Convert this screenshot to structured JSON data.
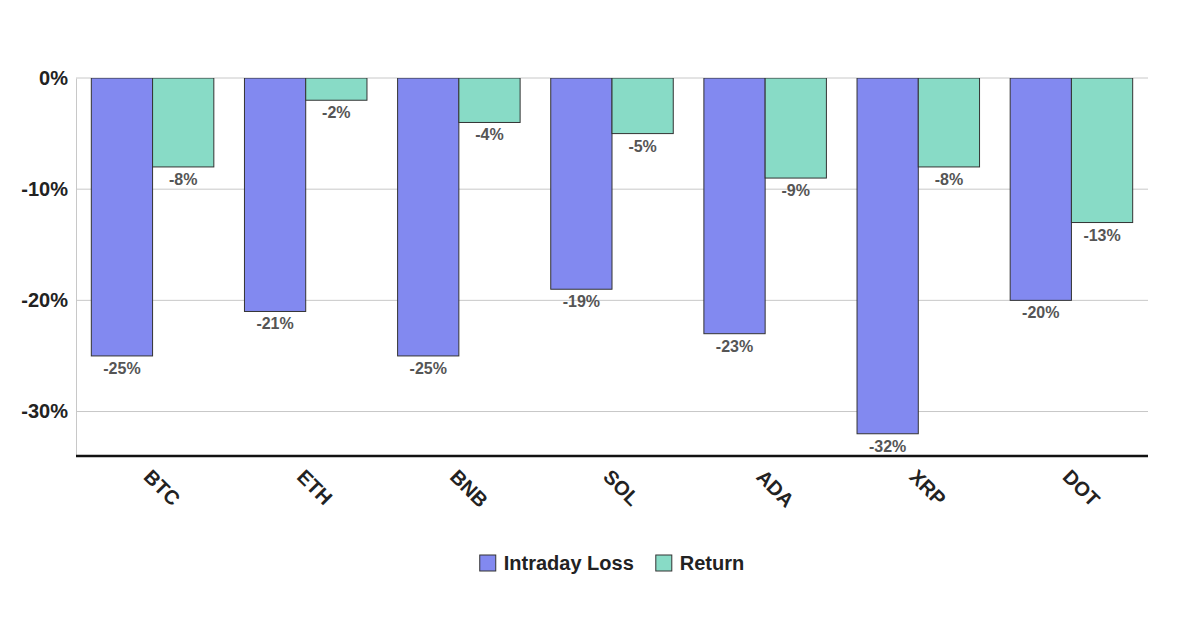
{
  "chart_data": {
    "type": "bar",
    "categories": [
      "BTC",
      "ETH",
      "BNB",
      "SOL",
      "ADA",
      "XRP",
      "DOT"
    ],
    "series": [
      {
        "name": "Intraday Loss",
        "color": "#8289f0",
        "values": [
          -25,
          -21,
          -25,
          -19,
          -23,
          -32,
          -20
        ],
        "value_labels": [
          "-25%",
          "-21%",
          "-25%",
          "-19%",
          "-23%",
          "-32%",
          "-20%"
        ]
      },
      {
        "name": "Return",
        "color": "#88dbc6",
        "values": [
          -8,
          -2,
          -4,
          -5,
          -9,
          -8,
          -13
        ],
        "value_labels": [
          "-8%",
          "-2%",
          "-4%",
          "-5%",
          "-9%",
          "-8%",
          "-13%"
        ]
      }
    ],
    "ylim": [
      -34,
      0
    ],
    "yticks": [
      {
        "value": 0,
        "label": "0%"
      },
      {
        "value": -10,
        "label": "-10%"
      },
      {
        "value": -20,
        "label": "-20%"
      },
      {
        "value": -30,
        "label": "-30%"
      }
    ],
    "grid": true,
    "legend": "bottom",
    "data_labels": true
  }
}
